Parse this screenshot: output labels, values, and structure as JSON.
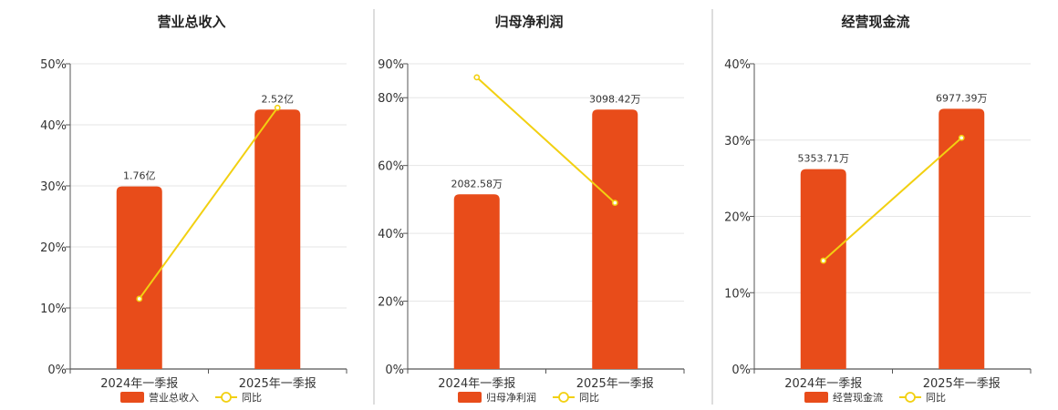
{
  "colors": {
    "bar": "#E84C1A",
    "line": "#F2D011",
    "axis": "#555555",
    "grid": "#E6E6E6",
    "divider": "#BBBBBB"
  },
  "line_legend": "同比",
  "chart_data": [
    {
      "type": "bar",
      "title": "营业总收入",
      "categories": [
        "2024年一季报",
        "2025年一季报"
      ],
      "series": [
        {
          "name": "营业总收入",
          "kind": "bar",
          "values": [
            29.9,
            42.5
          ],
          "labels": [
            "1.76亿",
            "2.52亿"
          ]
        },
        {
          "name": "同比",
          "kind": "line",
          "values": [
            11.5,
            42.8
          ]
        }
      ],
      "yticks": [
        "0%",
        "10%",
        "20%",
        "30%",
        "40%",
        "50%"
      ],
      "ytick_values": [
        0,
        10,
        20,
        30,
        40,
        50
      ],
      "ylim": [
        0,
        50
      ],
      "grid": true,
      "legend_position": "bottom"
    },
    {
      "type": "bar",
      "title": "归母净利润",
      "categories": [
        "2024年一季报",
        "2025年一季报"
      ],
      "series": [
        {
          "name": "归母净利润",
          "kind": "bar",
          "values": [
            51.5,
            76.5
          ],
          "labels": [
            "2082.58万",
            "3098.42万"
          ]
        },
        {
          "name": "同比",
          "kind": "line",
          "values": [
            86,
            49
          ]
        }
      ],
      "yticks": [
        "0%",
        "20%",
        "40%",
        "60%",
        "80%",
        "90%"
      ],
      "ytick_values": [
        0,
        20,
        40,
        60,
        80,
        90
      ],
      "ylim": [
        0,
        90
      ],
      "grid": true,
      "legend_position": "bottom"
    },
    {
      "type": "bar",
      "title": "经营现金流",
      "categories": [
        "2024年一季报",
        "2025年一季报"
      ],
      "series": [
        {
          "name": "经营现金流",
          "kind": "bar",
          "values": [
            26.2,
            34.1
          ],
          "labels": [
            "5353.71万",
            "6977.39万"
          ]
        },
        {
          "name": "同比",
          "kind": "line",
          "values": [
            14.2,
            30.3
          ]
        }
      ],
      "yticks": [
        "0%",
        "10%",
        "20%",
        "30%",
        "40%"
      ],
      "ytick_values": [
        0,
        10,
        20,
        30,
        40
      ],
      "ylim": [
        0,
        40
      ],
      "grid": true,
      "legend_position": "bottom"
    }
  ]
}
